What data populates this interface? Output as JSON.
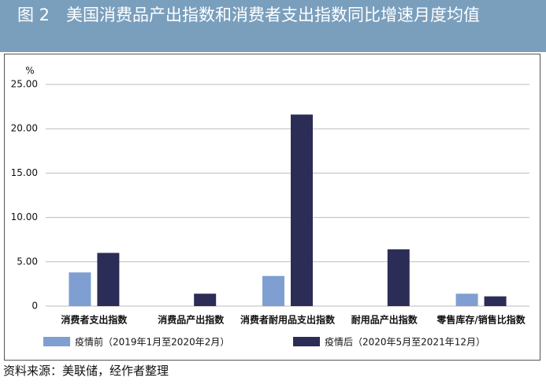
{
  "chart_data": {
    "type": "bar",
    "title": "图 2　美国消费品产出指数和消费者支出指数同比增速月度均值",
    "y_unit": "%",
    "categories": [
      "消费者支出指数",
      "消费品产出指数",
      "消费者耐用品支出指数",
      "耐用品产出指数",
      "零售库存/销售比指数"
    ],
    "series": [
      {
        "name": "疫情前（2019年1月至2020年2月）",
        "color": "#7f9fd2",
        "values": [
          3.8,
          null,
          3.4,
          null,
          1.4
        ]
      },
      {
        "name": "疫情后（2020年5月至2021年12月）",
        "color": "#2b2d57",
        "values": [
          6.0,
          1.4,
          21.6,
          6.4,
          1.1
        ]
      }
    ],
    "ylim": [
      0,
      25
    ],
    "yticks": [
      0,
      {
        "value": 5,
        "label": "5.00"
      },
      {
        "value": 10,
        "label": "10.00"
      },
      {
        "value": 15,
        "label": "15.00"
      },
      {
        "value": 20,
        "label": "20.00"
      },
      {
        "value": 25,
        "label": "25.00"
      }
    ],
    "grid": true,
    "legend": "bottom",
    "source": "资料来源：美联储，经作者整理"
  }
}
